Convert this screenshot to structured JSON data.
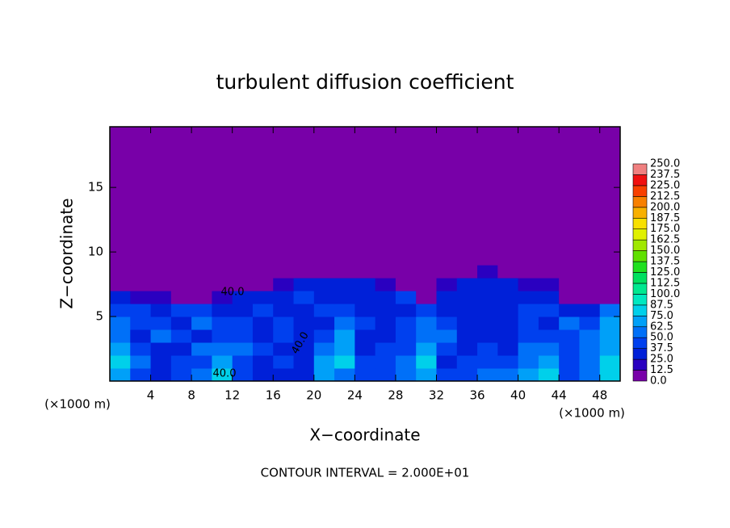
{
  "chart_data": {
    "type": "contour",
    "title": "turbulent diffusion coefficient",
    "x_label": "X−coordinate",
    "y_label": "Z−coordinate",
    "x_unit": "(×1000 m)",
    "footer": "CONTOUR INTERVAL = 2.000E+01",
    "xlim": [
      0,
      50
    ],
    "ylim": [
      0,
      19.7
    ],
    "xticks": [
      4,
      8,
      12,
      16,
      20,
      24,
      28,
      32,
      36,
      40,
      44,
      48
    ],
    "yticks": [
      5,
      10,
      15
    ],
    "x": [
      1,
      3,
      5,
      7,
      9,
      11,
      13,
      15,
      17,
      19,
      21,
      23,
      25,
      27,
      29,
      31,
      33,
      35,
      37,
      39,
      41,
      43,
      45,
      47,
      49
    ],
    "y": [
      0.5,
      1.5,
      2.5,
      3.5,
      4.5,
      5.5,
      6.5,
      7.5,
      8.5,
      9.5
    ],
    "z": [
      [
        70,
        45,
        30,
        40,
        55,
        75,
        45,
        30,
        25,
        35,
        70,
        60,
        40,
        45,
        55,
        70,
        40,
        45,
        55,
        50,
        65,
        75,
        45,
        60,
        80
      ],
      [
        75,
        60,
        35,
        40,
        45,
        70,
        40,
        35,
        40,
        30,
        65,
        75,
        45,
        40,
        50,
        75,
        35,
        40,
        45,
        40,
        60,
        70,
        45,
        55,
        75
      ],
      [
        65,
        40,
        30,
        35,
        50,
        60,
        55,
        40,
        35,
        30,
        50,
        70,
        35,
        40,
        45,
        70,
        40,
        35,
        40,
        35,
        55,
        60,
        40,
        60,
        70
      ],
      [
        55,
        35,
        50,
        40,
        35,
        45,
        40,
        30,
        45,
        35,
        40,
        65,
        35,
        35,
        45,
        60,
        50,
        35,
        35,
        30,
        45,
        40,
        45,
        55,
        65
      ],
      [
        60,
        45,
        40,
        35,
        50,
        40,
        45,
        35,
        40,
        30,
        35,
        55,
        40,
        30,
        40,
        55,
        45,
        30,
        30,
        35,
        40,
        35,
        60,
        40,
        70
      ],
      [
        45,
        40,
        35,
        45,
        40,
        35,
        30,
        40,
        35,
        35,
        45,
        40,
        35,
        35,
        30,
        40,
        35,
        30,
        35,
        30,
        45,
        40,
        35,
        35,
        55
      ],
      [
        25,
        20,
        15,
        5,
        5,
        15,
        25,
        30,
        35,
        40,
        30,
        35,
        30,
        25,
        40,
        0,
        30,
        35,
        30,
        35,
        30,
        25,
        10,
        0,
        10
      ],
      [
        0,
        0,
        0,
        0,
        0,
        0,
        0,
        0,
        20,
        25,
        30,
        25,
        25,
        15,
        0,
        0,
        15,
        30,
        25,
        25,
        20,
        15,
        0,
        0,
        0
      ],
      [
        0,
        0,
        0,
        0,
        0,
        0,
        0,
        0,
        0,
        0,
        0,
        0,
        0,
        0,
        0,
        0,
        0,
        0,
        15,
        10,
        0,
        0,
        0,
        0,
        0
      ],
      [
        0,
        0,
        0,
        0,
        0,
        0,
        0,
        0,
        0,
        0,
        0,
        0,
        0,
        0,
        0,
        0,
        0,
        0,
        0,
        0,
        0,
        0,
        0,
        0,
        0
      ]
    ],
    "contour_labels": {
      "values": [
        40,
        40,
        40
      ],
      "value_labels": [
        "40.0",
        "40.0",
        "40.0"
      ]
    },
    "colorbar": {
      "ticks": [
        {
          "value": 0,
          "label": "0.0"
        },
        {
          "value": 12.5,
          "label": "12.5"
        },
        {
          "value": 25,
          "label": "25.0"
        },
        {
          "value": 37.5,
          "label": "37.5"
        },
        {
          "value": 50,
          "label": "50.0"
        },
        {
          "value": 62.5,
          "label": "62.5"
        },
        {
          "value": 75,
          "label": "75.0"
        },
        {
          "value": 87.5,
          "label": "87.5"
        },
        {
          "value": 100,
          "label": "100.0"
        },
        {
          "value": 112.5,
          "label": "112.5"
        },
        {
          "value": 125,
          "label": "125.0"
        },
        {
          "value": 137.5,
          "label": "137.5"
        },
        {
          "value": 150,
          "label": "150.0"
        },
        {
          "value": 162.5,
          "label": "162.5"
        },
        {
          "value": 175,
          "label": "175.0"
        },
        {
          "value": 187.5,
          "label": "187.5"
        },
        {
          "value": 200,
          "label": "200.0"
        },
        {
          "value": 212.5,
          "label": "212.5"
        },
        {
          "value": 225,
          "label": "225.0"
        },
        {
          "value": 237.5,
          "label": "237.5"
        },
        {
          "value": 250,
          "label": "250.0"
        }
      ],
      "colors": [
        "#7800a8",
        "#2a00c0",
        "#0020d8",
        "#0040ee",
        "#0070f8",
        "#00a0f8",
        "#00d0ea",
        "#00e8c0",
        "#00e890",
        "#00e060",
        "#20e020",
        "#60e000",
        "#a0e800",
        "#e0f000",
        "#f8e000",
        "#f8b000",
        "#f88000",
        "#f84000",
        "#f01010",
        "#f08080"
      ]
    }
  }
}
